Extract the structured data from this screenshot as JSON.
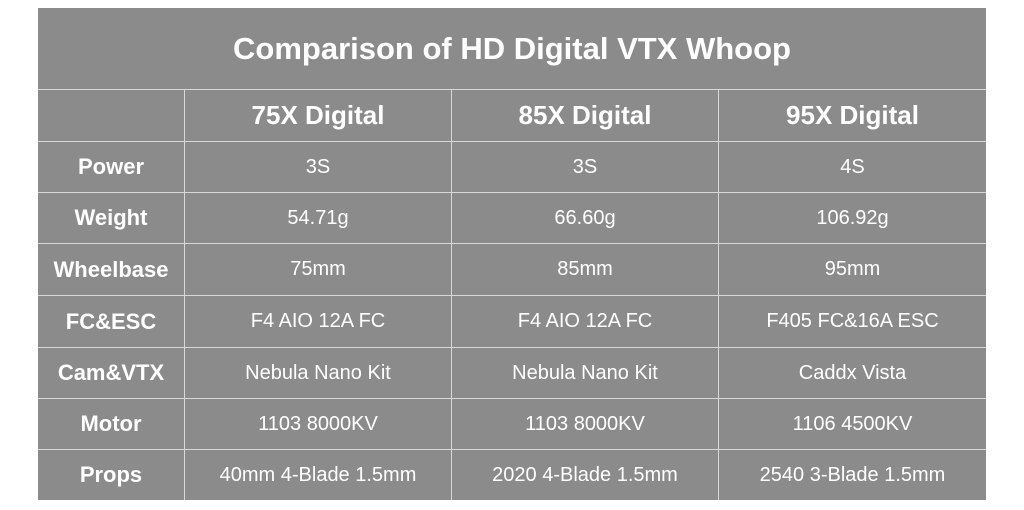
{
  "title": "Comparison of HD Digital VTX Whoop",
  "table": {
    "columns": [
      "75X Digital",
      "85X Digital",
      "95X Digital"
    ],
    "rows": [
      [
        "Power",
        "3S",
        "3S",
        "4S"
      ],
      [
        "Weight",
        "54.71g",
        "66.60g",
        "106.92g"
      ],
      [
        "Wheelbase",
        "75mm",
        "85mm",
        "95mm"
      ],
      [
        "FC&ESC",
        "F4 AIO 12A FC",
        "F4 AIO 12A FC",
        "F405 FC&16A ESC"
      ],
      [
        "Cam&VTX",
        "Nebula Nano Kit",
        "Nebula Nano Kit",
        "Caddx Vista"
      ],
      [
        "Motor",
        "1103 8000KV",
        "1103 8000KV",
        "1106 4500KV"
      ],
      [
        "Props",
        "40mm 4-Blade 1.5mm",
        "2020 4-Blade 1.5mm",
        "2540 3-Blade 1.5mm"
      ]
    ]
  }
}
